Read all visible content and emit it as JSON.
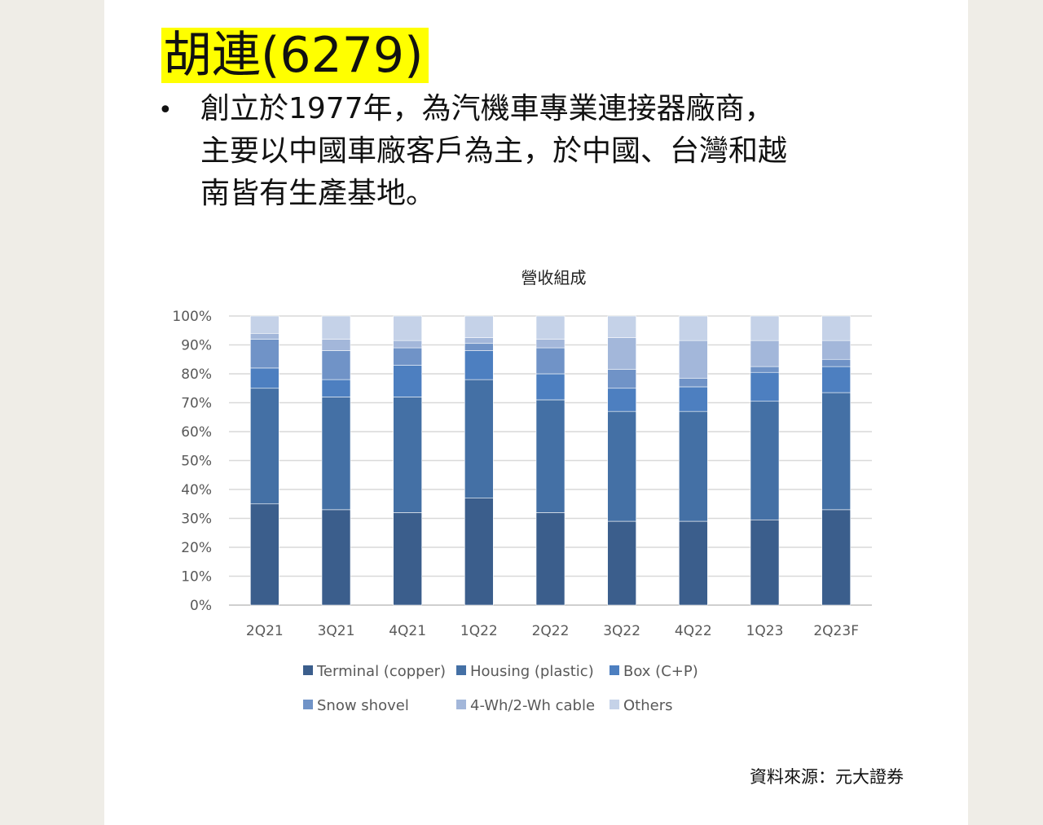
{
  "title": "胡連(6279)",
  "bullet": {
    "lines": [
      "創立於1977年，為汽機車專業連接器廠商，",
      "主要以中國車廠客戶為主，於中國、台灣和越",
      "南皆有生產基地。"
    ]
  },
  "source": "資料來源：元大證券",
  "chart_data": {
    "type": "bar",
    "stacked": true,
    "title": "營收組成",
    "categories": [
      "2Q21",
      "3Q21",
      "4Q21",
      "1Q22",
      "2Q22",
      "3Q22",
      "4Q22",
      "1Q23",
      "2Q23F"
    ],
    "yticks": [
      "0%",
      "10%",
      "20%",
      "30%",
      "40%",
      "50%",
      "60%",
      "70%",
      "80%",
      "90%",
      "100%"
    ],
    "ylim": [
      0,
      100
    ],
    "grid": true,
    "legend_position": "bottom",
    "series": [
      {
        "name": "Terminal (copper)",
        "color": "#3b5e8c",
        "values": [
          35,
          33,
          32,
          37,
          32,
          29,
          29,
          29.5,
          33
        ]
      },
      {
        "name": "Housing (plastic)",
        "color": "#4470a5",
        "values": [
          40,
          39,
          40,
          41,
          39,
          38,
          38,
          41,
          40.5
        ]
      },
      {
        "name": "Box (C+P)",
        "color": "#4d7fc0",
        "values": [
          7,
          6,
          11,
          10,
          9,
          8,
          8.5,
          10,
          9
        ]
      },
      {
        "name": "Snow shovel",
        "color": "#7093c7",
        "values": [
          10,
          10,
          6,
          2.5,
          9,
          6.5,
          3,
          2,
          2.5
        ]
      },
      {
        "name": "4-Wh/2-Wh cable",
        "color": "#a3b7da",
        "values": [
          2,
          4,
          2.5,
          2,
          3,
          11,
          13,
          9,
          6.5
        ]
      },
      {
        "name": "Others",
        "color": "#c5d2e8",
        "values": [
          6,
          8,
          8.5,
          7.5,
          8,
          7.5,
          8.5,
          8.5,
          8.5
        ]
      }
    ]
  }
}
